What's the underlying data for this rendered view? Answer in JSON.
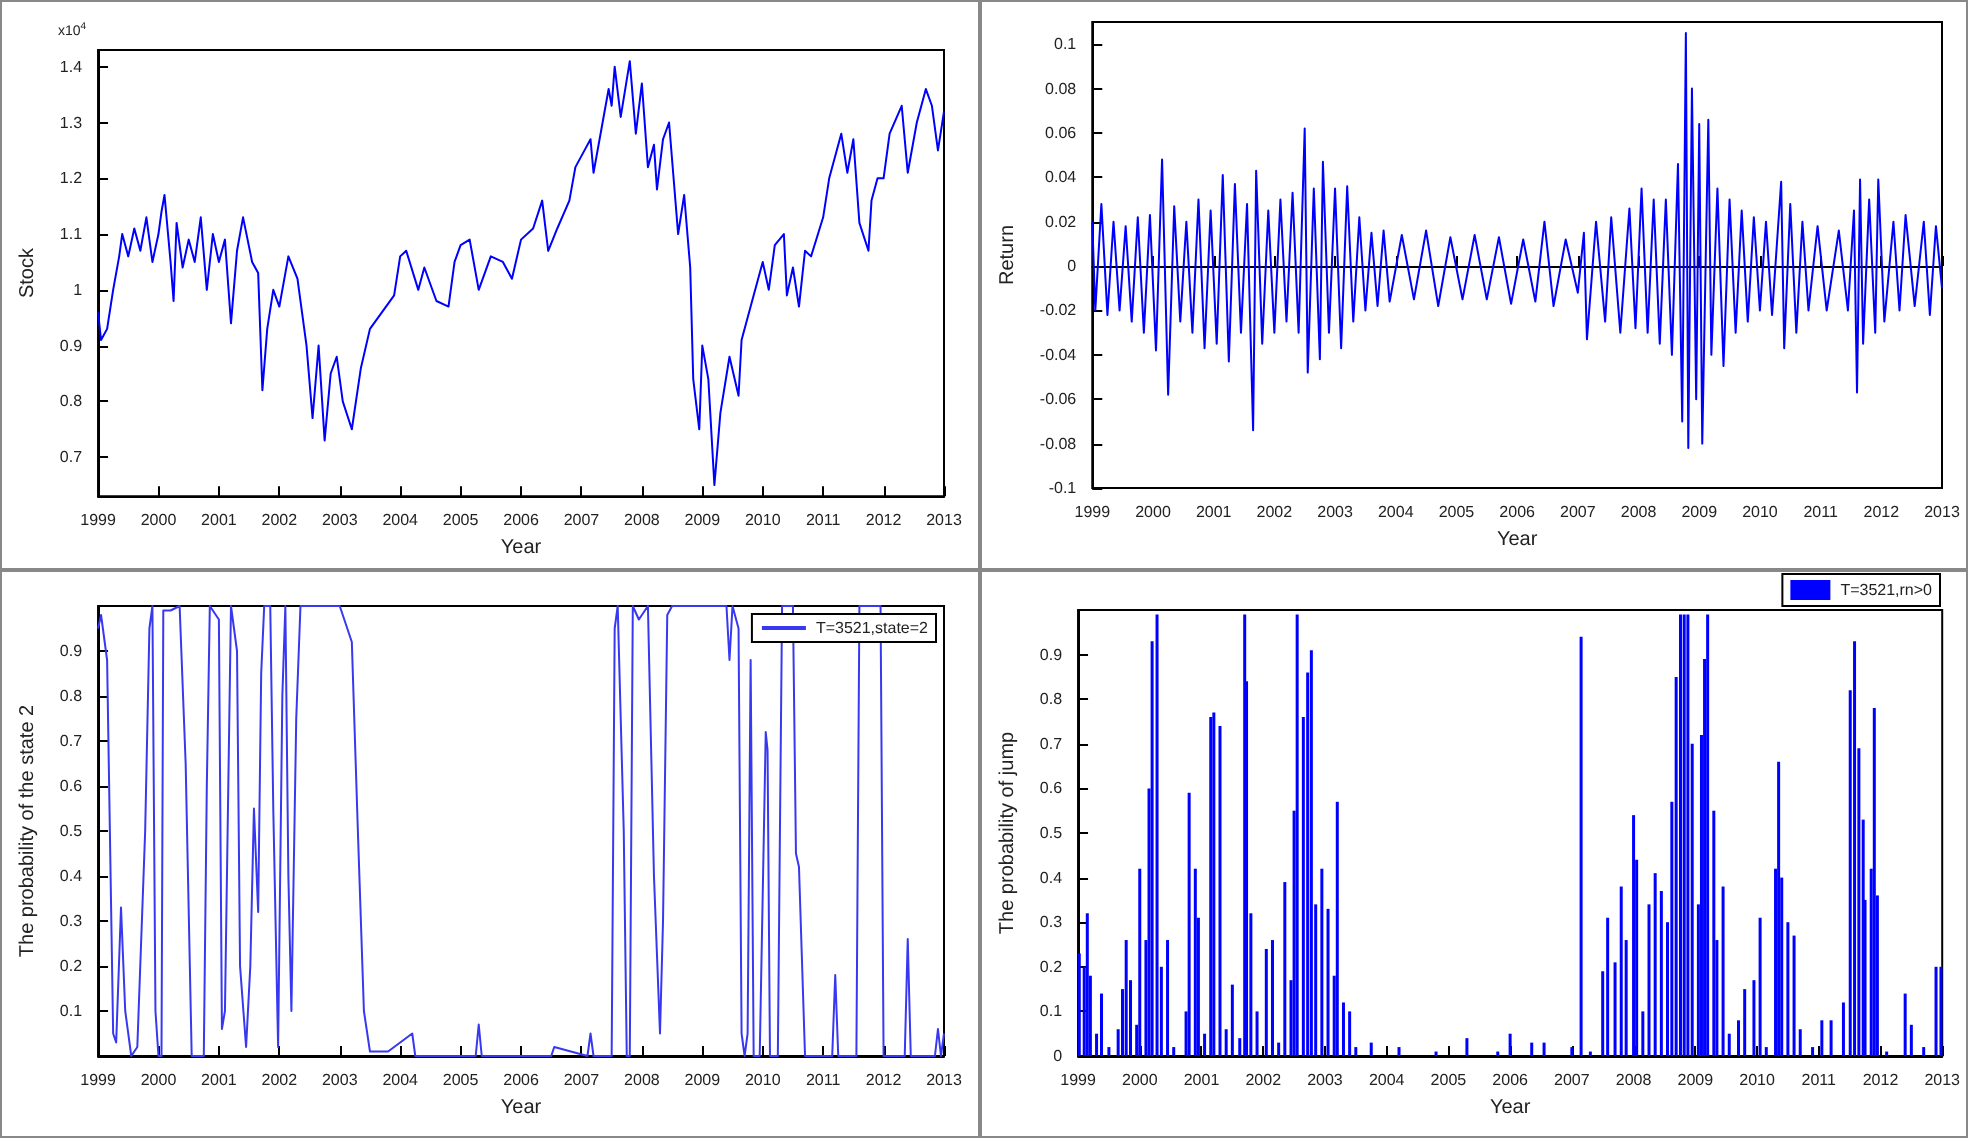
{
  "chart_data": [
    {
      "type": "line",
      "xlabel": "Year",
      "ylabel": "Stock",
      "annotations": [
        "x10$^{4}$"
      ],
      "color": "#0000ff",
      "xlim": [
        1999,
        2013
      ],
      "ylim": [
        0.63,
        1.43
      ],
      "xticks": [
        1999,
        2000,
        2001,
        2002,
        2003,
        2004,
        2005,
        2006,
        2007,
        2008,
        2009,
        2010,
        2011,
        2012,
        2013
      ],
      "yticks": [
        0.7,
        0.8,
        0.9,
        1,
        1.1,
        1.2,
        1.3,
        1.4
      ],
      "x": [
        1999.0,
        1999.05,
        1999.15,
        1999.25,
        1999.35,
        1999.4,
        1999.5,
        1999.6,
        1999.7,
        1999.8,
        1999.9,
        2000.0,
        2000.05,
        2000.1,
        2000.2,
        2000.25,
        2000.3,
        2000.4,
        2000.5,
        2000.6,
        2000.7,
        2000.8,
        2000.9,
        2001.0,
        2001.1,
        2001.2,
        2001.3,
        2001.4,
        2001.55,
        2001.65,
        2001.72,
        2001.8,
        2001.9,
        2002.0,
        2002.15,
        2002.3,
        2002.45,
        2002.55,
        2002.65,
        2002.75,
        2002.85,
        2002.95,
        2003.05,
        2003.2,
        2003.35,
        2003.5,
        2003.7,
        2003.9,
        2004.0,
        2004.1,
        2004.3,
        2004.4,
        2004.6,
        2004.8,
        2004.9,
        2005.0,
        2005.15,
        2005.3,
        2005.5,
        2005.7,
        2005.85,
        2006.0,
        2006.2,
        2006.35,
        2006.45,
        2006.6,
        2006.8,
        2006.9,
        2007.05,
        2007.15,
        2007.2,
        2007.35,
        2007.45,
        2007.5,
        2007.55,
        2007.65,
        2007.8,
        2007.9,
        2008.0,
        2008.1,
        2008.2,
        2008.25,
        2008.35,
        2008.45,
        2008.6,
        2008.7,
        2008.8,
        2008.85,
        2008.95,
        2009.0,
        2009.1,
        2009.2,
        2009.3,
        2009.45,
        2009.6,
        2009.65,
        2009.8,
        2010.0,
        2010.1,
        2010.2,
        2010.35,
        2010.4,
        2010.5,
        2010.6,
        2010.7,
        2010.8,
        2011.0,
        2011.1,
        2011.3,
        2011.4,
        2011.5,
        2011.6,
        2011.75,
        2011.8,
        2011.9,
        2012.0,
        2012.1,
        2012.3,
        2012.4,
        2012.55,
        2012.7,
        2012.8,
        2012.9,
        2013.0
      ],
      "values": [
        0.96,
        0.91,
        0.93,
        1.0,
        1.06,
        1.1,
        1.06,
        1.11,
        1.07,
        1.13,
        1.05,
        1.1,
        1.14,
        1.17,
        1.05,
        0.98,
        1.12,
        1.04,
        1.09,
        1.05,
        1.13,
        1.0,
        1.1,
        1.05,
        1.09,
        0.94,
        1.07,
        1.13,
        1.05,
        1.03,
        0.82,
        0.93,
        1.0,
        0.97,
        1.06,
        1.02,
        0.9,
        0.77,
        0.9,
        0.73,
        0.85,
        0.88,
        0.8,
        0.75,
        0.86,
        0.93,
        0.96,
        0.99,
        1.06,
        1.07,
        1.0,
        1.04,
        0.98,
        0.97,
        1.05,
        1.08,
        1.09,
        1.0,
        1.06,
        1.05,
        1.02,
        1.09,
        1.11,
        1.16,
        1.07,
        1.11,
        1.16,
        1.22,
        1.25,
        1.27,
        1.21,
        1.3,
        1.36,
        1.33,
        1.4,
        1.31,
        1.41,
        1.28,
        1.37,
        1.22,
        1.26,
        1.18,
        1.27,
        1.3,
        1.1,
        1.17,
        1.04,
        0.84,
        0.75,
        0.9,
        0.84,
        0.65,
        0.78,
        0.88,
        0.81,
        0.91,
        0.97,
        1.05,
        1.0,
        1.08,
        1.1,
        0.99,
        1.04,
        0.97,
        1.07,
        1.06,
        1.13,
        1.2,
        1.28,
        1.21,
        1.27,
        1.12,
        1.07,
        1.16,
        1.2,
        1.2,
        1.28,
        1.33,
        1.21,
        1.3,
        1.36,
        1.33,
        1.25,
        1.32
      ]
    },
    {
      "type": "line",
      "xlabel": "Year",
      "ylabel": "Return",
      "color": "#0000ff",
      "xlim": [
        1999,
        2013
      ],
      "ylim": [
        -0.1,
        0.11
      ],
      "xticks": [
        1999,
        2000,
        2001,
        2002,
        2003,
        2004,
        2005,
        2006,
        2007,
        2008,
        2009,
        2010,
        2011,
        2012,
        2013
      ],
      "yticks": [
        -0.1,
        -0.08,
        -0.06,
        -0.04,
        -0.02,
        0,
        0.02,
        0.04,
        0.06,
        0.08,
        0.1
      ],
      "x": [
        1999.0,
        1999.05,
        1999.15,
        1999.25,
        1999.35,
        1999.45,
        1999.55,
        1999.65,
        1999.75,
        1999.85,
        1999.95,
        2000.05,
        2000.15,
        2000.25,
        2000.35,
        2000.45,
        2000.55,
        2000.65,
        2000.75,
        2000.85,
        2000.95,
        2001.05,
        2001.15,
        2001.25,
        2001.35,
        2001.45,
        2001.55,
        2001.65,
        2001.7,
        2001.8,
        2001.9,
        2002.0,
        2002.1,
        2002.2,
        2002.3,
        2002.4,
        2002.5,
        2002.55,
        2002.65,
        2002.75,
        2002.8,
        2002.9,
        2003.0,
        2003.1,
        2003.2,
        2003.3,
        2003.4,
        2003.5,
        2003.6,
        2003.7,
        2003.8,
        2003.9,
        2004.1,
        2004.3,
        2004.5,
        2004.7,
        2004.9,
        2005.1,
        2005.3,
        2005.5,
        2005.7,
        2005.9,
        2006.1,
        2006.3,
        2006.45,
        2006.6,
        2006.8,
        2007.0,
        2007.1,
        2007.15,
        2007.3,
        2007.45,
        2007.55,
        2007.7,
        2007.85,
        2007.95,
        2008.05,
        2008.15,
        2008.25,
        2008.35,
        2008.45,
        2008.55,
        2008.65,
        2008.72,
        2008.78,
        2008.82,
        2008.88,
        2008.95,
        2009.0,
        2009.05,
        2009.15,
        2009.2,
        2009.3,
        2009.4,
        2009.5,
        2009.6,
        2009.7,
        2009.8,
        2009.9,
        2010.0,
        2010.1,
        2010.2,
        2010.35,
        2010.4,
        2010.5,
        2010.6,
        2010.7,
        2010.8,
        2010.95,
        2011.1,
        2011.3,
        2011.45,
        2011.55,
        2011.6,
        2011.65,
        2011.7,
        2011.8,
        2011.9,
        2011.95,
        2012.05,
        2012.2,
        2012.3,
        2012.4,
        2012.55,
        2012.7,
        2012.8,
        2012.9,
        2013.0
      ],
      "values": [
        0.02,
        -0.02,
        0.028,
        -0.022,
        0.02,
        -0.02,
        0.018,
        -0.025,
        0.022,
        -0.03,
        0.023,
        -0.038,
        0.048,
        -0.058,
        0.027,
        -0.025,
        0.02,
        -0.03,
        0.03,
        -0.037,
        0.025,
        -0.035,
        0.041,
        -0.043,
        0.037,
        -0.03,
        0.028,
        -0.074,
        0.043,
        -0.035,
        0.025,
        -0.03,
        0.03,
        -0.025,
        0.033,
        -0.03,
        0.062,
        -0.048,
        0.035,
        -0.042,
        0.047,
        -0.03,
        0.035,
        -0.037,
        0.036,
        -0.025,
        0.022,
        -0.02,
        0.015,
        -0.018,
        0.016,
        -0.016,
        0.014,
        -0.015,
        0.016,
        -0.018,
        0.013,
        -0.015,
        0.014,
        -0.015,
        0.013,
        -0.017,
        0.012,
        -0.016,
        0.02,
        -0.018,
        0.012,
        -0.012,
        0.015,
        -0.033,
        0.02,
        -0.025,
        0.022,
        -0.03,
        0.026,
        -0.028,
        0.035,
        -0.03,
        0.03,
        -0.035,
        0.03,
        -0.04,
        0.046,
        -0.07,
        0.105,
        -0.082,
        0.08,
        -0.06,
        0.064,
        -0.08,
        0.066,
        -0.04,
        0.035,
        -0.045,
        0.03,
        -0.03,
        0.025,
        -0.025,
        0.022,
        -0.02,
        0.02,
        -0.022,
        0.038,
        -0.037,
        0.028,
        -0.03,
        0.02,
        -0.02,
        0.018,
        -0.02,
        0.016,
        -0.02,
        0.025,
        -0.057,
        0.039,
        -0.035,
        0.03,
        -0.03,
        0.039,
        -0.025,
        0.02,
        -0.02,
        0.023,
        -0.018,
        0.02,
        -0.022,
        0.018,
        -0.01
      ]
    },
    {
      "type": "line",
      "xlabel": "Year",
      "ylabel": "The probability of the state 2",
      "legend": "top right",
      "xlim": [
        1999,
        2013
      ],
      "ylim": [
        0,
        1
      ],
      "xticks": [
        1999,
        2000,
        2001,
        2002,
        2003,
        2004,
        2005,
        2006,
        2007,
        2008,
        2009,
        2010,
        2011,
        2012,
        2013
      ],
      "yticks": [
        0.1,
        0.2,
        0.3,
        0.4,
        0.5,
        0.6,
        0.7,
        0.8,
        0.9
      ],
      "x": [
        1999.0,
        1999.05,
        1999.15,
        1999.25,
        1999.3,
        1999.38,
        1999.45,
        1999.55,
        1999.65,
        1999.78,
        1999.85,
        1999.9,
        1999.95,
        2000.0,
        2000.05,
        2000.08,
        2000.2,
        2000.35,
        2000.45,
        2000.55,
        2000.75,
        2000.8,
        2000.85,
        2000.95,
        2001.0,
        2001.05,
        2001.1,
        2001.2,
        2001.3,
        2001.35,
        2001.45,
        2001.52,
        2001.58,
        2001.65,
        2001.7,
        2001.75,
        2001.85,
        2001.9,
        2001.98,
        2002.05,
        2002.1,
        2002.15,
        2002.2,
        2002.28,
        2002.35,
        2002.5,
        2003.0,
        2003.2,
        2003.3,
        2003.4,
        2003.5,
        2003.8,
        2004.2,
        2004.25,
        2005.25,
        2005.3,
        2005.35,
        2006.5,
        2006.55,
        2007.1,
        2007.15,
        2007.2,
        2007.5,
        2007.55,
        2007.6,
        2007.7,
        2007.75,
        2007.8,
        2007.85,
        2007.95,
        2008.1,
        2008.2,
        2008.3,
        2008.35,
        2008.42,
        2008.5,
        2009.4,
        2009.45,
        2009.5,
        2009.6,
        2009.65,
        2009.7,
        2009.75,
        2009.8,
        2009.85,
        2009.95,
        2010.05,
        2010.08,
        2010.12,
        2010.25,
        2010.32,
        2010.5,
        2010.55,
        2010.6,
        2010.7,
        2011.15,
        2011.2,
        2011.25,
        2011.55,
        2011.6,
        2011.95,
        2012.0,
        2012.35,
        2012.4,
        2012.45,
        2012.85,
        2012.9,
        2012.95,
        2013.0
      ],
      "series": [
        {
          "name": "T=3521,state=2",
          "color": "#3838f0",
          "values": [
            0.95,
            0.98,
            0.88,
            0.05,
            0.03,
            0.33,
            0.1,
            0.0,
            0.02,
            0.5,
            0.95,
            1.0,
            0.1,
            0.0,
            0.0,
            0.99,
            0.99,
            1.0,
            0.65,
            0.0,
            0.0,
            0.6,
            1.0,
            0.98,
            0.97,
            0.06,
            0.1,
            1.0,
            0.9,
            0.2,
            0.02,
            0.2,
            0.55,
            0.32,
            0.85,
            1.0,
            1.0,
            0.55,
            0.02,
            0.8,
            1.0,
            0.4,
            0.1,
            0.75,
            1.0,
            1.0,
            1.0,
            0.92,
            0.5,
            0.1,
            0.01,
            0.01,
            0.05,
            0.0,
            0.0,
            0.07,
            0.0,
            0.0,
            0.02,
            0.0,
            0.05,
            0.0,
            0.0,
            0.95,
            1.0,
            0.5,
            0.0,
            0.0,
            1.0,
            0.97,
            1.0,
            0.4,
            0.05,
            0.3,
            0.98,
            1.0,
            1.0,
            0.88,
            1.0,
            0.95,
            0.05,
            0.0,
            0.05,
            0.88,
            0.0,
            0.0,
            0.72,
            0.68,
            0.0,
            0.0,
            1.0,
            1.0,
            0.45,
            0.42,
            0.0,
            0.0,
            0.18,
            0.0,
            0.0,
            1.0,
            1.0,
            0.0,
            0.0,
            0.26,
            0.0,
            0.0,
            0.06,
            0.0,
            0.05
          ]
        }
      ]
    },
    {
      "type": "bar",
      "xlabel": "Year",
      "ylabel": "The probability of jump",
      "legend": "top right",
      "xlim": [
        1999,
        2013
      ],
      "ylim": [
        0,
        1
      ],
      "xticks": [
        1999,
        2000,
        2001,
        2002,
        2003,
        2004,
        2005,
        2006,
        2007,
        2008,
        2009,
        2010,
        2011,
        2012,
        2013
      ],
      "yticks": [
        0,
        0.1,
        0.2,
        0.3,
        0.4,
        0.5,
        0.6,
        0.7,
        0.8,
        0.9
      ],
      "x": [
        1999.02,
        1999.1,
        1999.15,
        1999.2,
        1999.3,
        1999.38,
        1999.5,
        1999.65,
        1999.72,
        1999.78,
        1999.85,
        1999.95,
        2000.0,
        2000.1,
        2000.15,
        2000.2,
        2000.28,
        2000.35,
        2000.45,
        2000.55,
        2000.75,
        2000.8,
        2000.9,
        2000.95,
        2001.05,
        2001.15,
        2001.2,
        2001.3,
        2001.4,
        2001.5,
        2001.62,
        2001.7,
        2001.73,
        2001.8,
        2001.9,
        2002.05,
        2002.15,
        2002.25,
        2002.35,
        2002.45,
        2002.5,
        2002.55,
        2002.65,
        2002.72,
        2002.78,
        2002.85,
        2002.95,
        2003.05,
        2003.15,
        2003.2,
        2003.3,
        2003.4,
        2003.5,
        2003.75,
        2004.2,
        2004.8,
        2005.3,
        2005.8,
        2006.0,
        2006.35,
        2006.55,
        2007.0,
        2007.15,
        2007.3,
        2007.5,
        2007.58,
        2007.7,
        2007.8,
        2007.88,
        2008.0,
        2008.05,
        2008.15,
        2008.25,
        2008.35,
        2008.45,
        2008.55,
        2008.62,
        2008.69,
        2008.76,
        2008.82,
        2008.88,
        2008.95,
        2009.05,
        2009.1,
        2009.15,
        2009.2,
        2009.3,
        2009.35,
        2009.45,
        2009.55,
        2009.7,
        2009.8,
        2009.95,
        2010.05,
        2010.15,
        2010.3,
        2010.35,
        2010.4,
        2010.5,
        2010.6,
        2010.7,
        2010.9,
        2011.05,
        2011.2,
        2011.4,
        2011.51,
        2011.58,
        2011.65,
        2011.72,
        2011.75,
        2011.85,
        2011.9,
        2011.95,
        2012.1,
        2012.4,
        2012.5,
        2012.7,
        2012.9,
        2012.98
      ],
      "series": [
        {
          "name": "T=3521,rn>0",
          "color": "#0000ff",
          "values": [
            0.23,
            0.2,
            0.32,
            0.18,
            0.05,
            0.14,
            0.02,
            0.06,
            0.15,
            0.26,
            0.17,
            0.07,
            0.42,
            0.26,
            0.6,
            0.93,
            0.99,
            0.2,
            0.26,
            0.02,
            0.1,
            0.59,
            0.42,
            0.31,
            0.05,
            0.76,
            0.77,
            0.74,
            0.06,
            0.16,
            0.04,
            0.99,
            0.84,
            0.32,
            0.1,
            0.24,
            0.26,
            0.03,
            0.39,
            0.17,
            0.55,
            0.99,
            0.76,
            0.86,
            0.91,
            0.34,
            0.42,
            0.33,
            0.18,
            0.57,
            0.12,
            0.1,
            0.02,
            0.03,
            0.02,
            0.01,
            0.04,
            0.01,
            0.05,
            0.03,
            0.03,
            0.02,
            0.94,
            0.01,
            0.19,
            0.31,
            0.21,
            0.38,
            0.26,
            0.54,
            0.44,
            0.1,
            0.34,
            0.41,
            0.37,
            0.3,
            0.57,
            0.85,
            0.99,
            0.99,
            0.99,
            0.7,
            0.34,
            0.72,
            0.89,
            0.99,
            0.55,
            0.26,
            0.38,
            0.05,
            0.08,
            0.15,
            0.17,
            0.31,
            0.02,
            0.42,
            0.66,
            0.4,
            0.3,
            0.27,
            0.06,
            0.02,
            0.08,
            0.08,
            0.12,
            0.82,
            0.93,
            0.69,
            0.53,
            0.35,
            0.42,
            0.78,
            0.36,
            0.01,
            0.14,
            0.07,
            0.02,
            0.2,
            0.2
          ]
        }
      ]
    }
  ]
}
